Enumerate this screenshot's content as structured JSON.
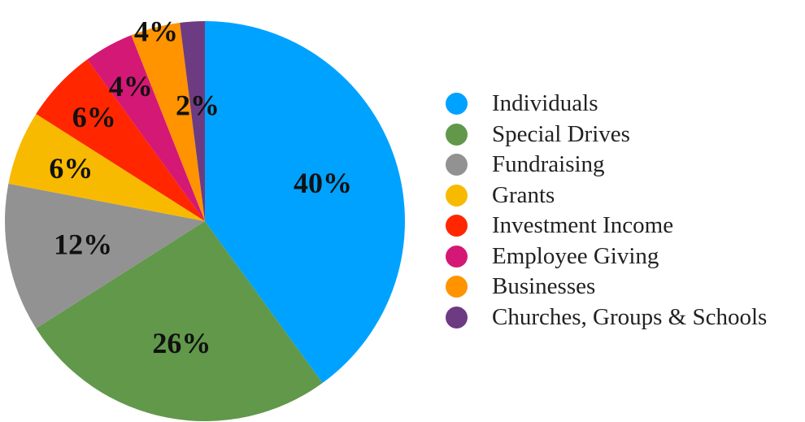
{
  "chart_data": {
    "type": "pie",
    "title": "",
    "legend_position": "right",
    "slices": [
      {
        "label": "Individuals",
        "value": 40,
        "value_label": "40%",
        "color": "#00A2FF"
      },
      {
        "label": "Special Drives",
        "value": 26,
        "value_label": "26%",
        "color": "#61984A"
      },
      {
        "label": "Fundraising",
        "value": 12,
        "value_label": "12%",
        "color": "#929292"
      },
      {
        "label": "Grants",
        "value": 6,
        "value_label": "6%",
        "color": "#F8BA00"
      },
      {
        "label": "Investment Income",
        "value": 6,
        "value_label": "6%",
        "color": "#FF2600"
      },
      {
        "label": "Employee Giving",
        "value": 4,
        "value_label": "4%",
        "color": "#D41876"
      },
      {
        "label": "Businesses",
        "value": 4,
        "value_label": "4%",
        "color": "#FF9300"
      },
      {
        "label": "Churches, Groups & Schools",
        "value": 2,
        "value_label": "2%",
        "color": "#6D3B82"
      }
    ]
  }
}
